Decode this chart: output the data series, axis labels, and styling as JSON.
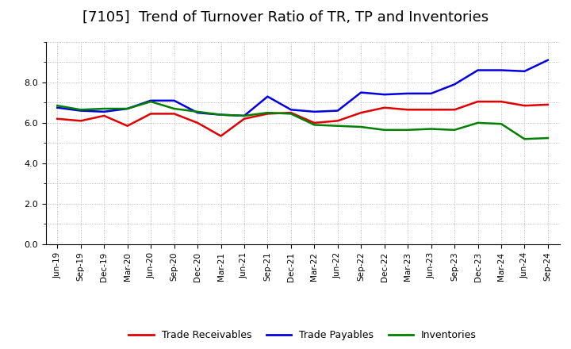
{
  "title": "[7105]  Trend of Turnover Ratio of TR, TP and Inventories",
  "labels": [
    "Jun-19",
    "Sep-19",
    "Dec-19",
    "Mar-20",
    "Jun-20",
    "Sep-20",
    "Dec-20",
    "Mar-21",
    "Jun-21",
    "Sep-21",
    "Dec-21",
    "Mar-22",
    "Jun-22",
    "Sep-22",
    "Dec-22",
    "Mar-23",
    "Jun-23",
    "Sep-23",
    "Dec-23",
    "Mar-24",
    "Jun-24",
    "Sep-24"
  ],
  "trade_receivables": [
    6.2,
    6.1,
    6.35,
    5.85,
    6.45,
    6.45,
    6.0,
    5.35,
    6.2,
    6.45,
    6.5,
    6.0,
    6.1,
    6.5,
    6.75,
    6.65,
    6.65,
    6.65,
    7.05,
    7.05,
    6.85,
    6.9
  ],
  "trade_payables": [
    6.75,
    6.6,
    6.55,
    6.7,
    7.1,
    7.1,
    6.5,
    6.4,
    6.35,
    7.3,
    6.65,
    6.55,
    6.6,
    7.5,
    7.4,
    7.45,
    7.45,
    7.9,
    8.6,
    8.6,
    8.55,
    9.1
  ],
  "inventories": [
    6.85,
    6.65,
    6.7,
    6.7,
    7.05,
    6.7,
    6.55,
    6.4,
    6.35,
    6.5,
    6.45,
    5.9,
    5.85,
    5.8,
    5.65,
    5.65,
    5.7,
    5.65,
    6.0,
    5.95,
    5.2,
    5.25
  ],
  "tr_color": "#e00000",
  "tp_color": "#0000e0",
  "inv_color": "#008000",
  "ylim": [
    0.0,
    10.0
  ],
  "yticks": [
    0.0,
    2.0,
    4.0,
    6.0,
    8.0
  ],
  "background_color": "#ffffff",
  "grid_color": "#aaaaaa",
  "title_fontsize": 13,
  "legend_labels": [
    "Trade Receivables",
    "Trade Payables",
    "Inventories"
  ]
}
